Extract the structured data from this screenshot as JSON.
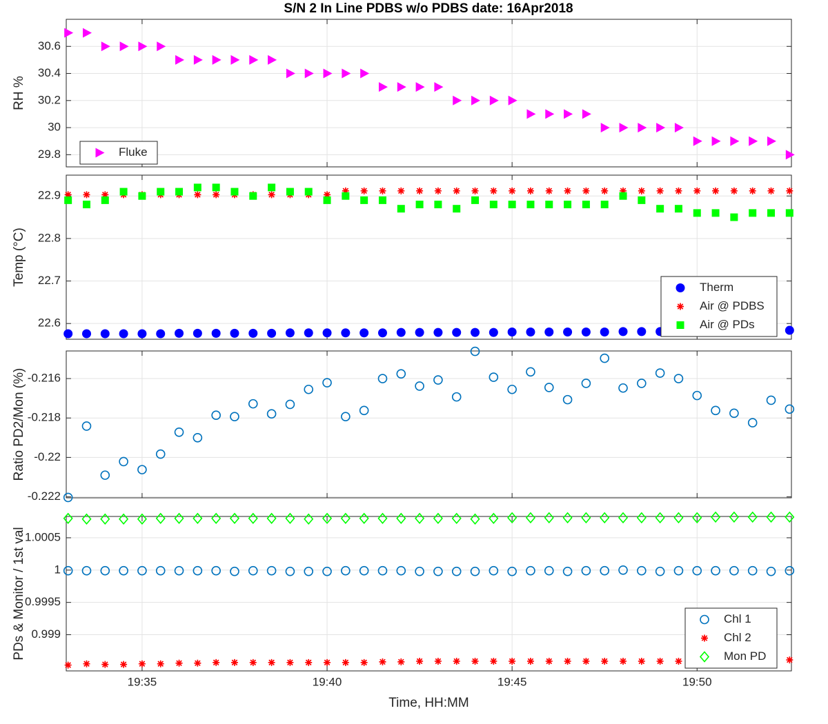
{
  "chart_data": [
    {
      "type": "scatter",
      "title": "S/N 2 In Line PDBS w/o PDBS date: 16Apr2018",
      "ylabel": "RH %",
      "x": [
        33,
        33.5,
        34,
        34.5,
        35,
        35.5,
        36,
        36.5,
        37,
        37.5,
        38,
        38.5,
        39,
        39.5,
        40,
        40.5,
        41,
        41.5,
        42,
        42.5,
        43,
        43.5,
        44,
        44.5,
        45,
        45.5,
        46,
        46.5,
        47,
        47.5,
        48,
        48.5,
        49,
        49.5,
        50,
        50.5,
        51,
        51.5,
        52,
        52.5
      ],
      "xlim": [
        32.95,
        52.55
      ],
      "ylim": [
        29.71,
        30.8
      ],
      "yticks": [
        29.8,
        30,
        30.2,
        30.4,
        30.6
      ],
      "grid": true,
      "legend": "southwest",
      "series": [
        {
          "name": "Fluke",
          "color": "#ff00ff",
          "marker": "triangle",
          "values": [
            30.7,
            30.7,
            30.6,
            30.6,
            30.6,
            30.6,
            30.5,
            30.5,
            30.5,
            30.5,
            30.5,
            30.5,
            30.4,
            30.4,
            30.4,
            30.4,
            30.4,
            30.3,
            30.3,
            30.3,
            30.3,
            30.2,
            30.2,
            30.2,
            30.2,
            30.1,
            30.1,
            30.1,
            30.1,
            30.0,
            30.0,
            30.0,
            30.0,
            30.0,
            29.9,
            29.9,
            29.9,
            29.9,
            29.9,
            29.8
          ]
        }
      ]
    },
    {
      "type": "scatter",
      "ylabel": "Temp (°C)",
      "x": [
        33,
        33.5,
        34,
        34.5,
        35,
        35.5,
        36,
        36.5,
        37,
        37.5,
        38,
        38.5,
        39,
        39.5,
        40,
        40.5,
        41,
        41.5,
        42,
        42.5,
        43,
        43.5,
        44,
        44.5,
        45,
        45.5,
        46,
        46.5,
        47,
        47.5,
        48,
        48.5,
        49,
        49.5,
        50,
        50.5,
        51,
        51.5,
        52,
        52.5
      ],
      "xlim": [
        32.95,
        52.55
      ],
      "ylim": [
        22.563,
        22.949
      ],
      "yticks": [
        22.6,
        22.7,
        22.8,
        22.9
      ],
      "grid": true,
      "legend": "southeast",
      "series": [
        {
          "name": "Therm",
          "color": "#0000ff",
          "marker": "dot",
          "values": [
            22.576,
            22.576,
            22.576,
            22.576,
            22.576,
            22.576,
            22.577,
            22.577,
            22.577,
            22.577,
            22.577,
            22.577,
            22.578,
            22.578,
            22.578,
            22.578,
            22.578,
            22.578,
            22.579,
            22.579,
            22.579,
            22.579,
            22.579,
            22.579,
            22.58,
            22.58,
            22.58,
            22.58,
            22.58,
            22.58,
            22.581,
            22.581,
            22.581,
            22.581,
            22.581,
            22.581,
            22.582,
            22.582,
            22.582,
            22.584
          ]
        },
        {
          "name": "Air @ PDBS",
          "color": "#ff0000",
          "marker": "asterisk",
          "values": [
            22.903,
            22.903,
            22.903,
            22.903,
            22.903,
            22.903,
            22.903,
            22.903,
            22.903,
            22.903,
            22.903,
            22.903,
            22.903,
            22.903,
            22.903,
            22.912,
            22.912,
            22.912,
            22.912,
            22.912,
            22.912,
            22.912,
            22.912,
            22.912,
            22.912,
            22.912,
            22.912,
            22.912,
            22.912,
            22.912,
            22.912,
            22.912,
            22.912,
            22.912,
            22.912,
            22.912,
            22.912,
            22.912,
            22.912,
            22.912
          ]
        },
        {
          "name": "Air @ PDs",
          "color": "#00ff00",
          "marker": "square",
          "values": [
            22.89,
            22.88,
            22.89,
            22.91,
            22.9,
            22.91,
            22.91,
            22.92,
            22.92,
            22.91,
            22.9,
            22.92,
            22.91,
            22.91,
            22.89,
            22.9,
            22.89,
            22.89,
            22.87,
            22.88,
            22.88,
            22.87,
            22.89,
            22.88,
            22.88,
            22.88,
            22.88,
            22.88,
            22.88,
            22.88,
            22.9,
            22.89,
            22.87,
            22.87,
            22.86,
            22.86,
            22.85,
            22.86,
            22.86,
            22.86
          ]
        }
      ]
    },
    {
      "type": "scatter",
      "ylabel": "Ratio PD2/Mon (%)",
      "x": [
        33,
        33.5,
        34,
        34.5,
        35,
        35.5,
        36,
        36.5,
        37,
        37.5,
        38,
        38.5,
        39,
        39.5,
        40,
        40.5,
        41,
        41.5,
        42,
        42.5,
        43,
        43.5,
        44,
        44.5,
        45,
        45.5,
        46,
        46.5,
        47,
        47.5,
        48,
        48.5,
        49,
        49.5,
        50,
        50.5,
        51,
        51.5,
        52,
        52.5
      ],
      "xlim": [
        32.95,
        52.55
      ],
      "ylim": [
        -0.22205,
        -0.2146
      ],
      "yticks": [
        -0.222,
        -0.22,
        -0.218,
        -0.216
      ],
      "grid": true,
      "series": [
        {
          "color": "#0072bd",
          "marker": "circle",
          "values": [
            -0.22203,
            -0.21841,
            -0.2209,
            -0.22021,
            -0.22062,
            -0.21983,
            -0.21872,
            -0.219,
            -0.21786,
            -0.21793,
            -0.21728,
            -0.21779,
            -0.21731,
            -0.21655,
            -0.21621,
            -0.21793,
            -0.21762,
            -0.216,
            -0.21576,
            -0.21638,
            -0.21607,
            -0.21693,
            -0.21462,
            -0.21593,
            -0.21655,
            -0.21566,
            -0.21645,
            -0.21707,
            -0.21624,
            -0.21497,
            -0.21648,
            -0.21624,
            -0.21572,
            -0.216,
            -0.21686,
            -0.21762,
            -0.21776,
            -0.21824,
            -0.2171,
            -0.21755
          ]
        }
      ]
    },
    {
      "type": "scatter",
      "ylabel": "PDs & Monitor / 1st val",
      "xlabel": "Time, HH:MM",
      "x": [
        33,
        33.5,
        34,
        34.5,
        35,
        35.5,
        36,
        36.5,
        37,
        37.5,
        38,
        38.5,
        39,
        39.5,
        40,
        40.5,
        41,
        41.5,
        42,
        42.5,
        43,
        43.5,
        44,
        44.5,
        45,
        45.5,
        46,
        46.5,
        47,
        47.5,
        48,
        48.5,
        49,
        49.5,
        50,
        50.5,
        51,
        51.5,
        52,
        52.5
      ],
      "xlim": [
        32.95,
        52.55
      ],
      "xticks": [
        {
          "value": 35,
          "label": "19:35"
        },
        {
          "value": 40,
          "label": "19:40"
        },
        {
          "value": 45,
          "label": "19:45"
        },
        {
          "value": 50,
          "label": "19:50"
        }
      ],
      "ylim": [
        0.99844,
        1.00083
      ],
      "yticks": [
        0.999,
        0.9995,
        1,
        1.0005
      ],
      "grid": true,
      "legend": "southeast",
      "series": [
        {
          "name": "Chl 1",
          "color": "#0072bd",
          "marker": "circle",
          "values": [
            0.99999,
            0.99999,
            0.99999,
            0.99999,
            0.99999,
            0.99999,
            0.99999,
            0.99999,
            0.99999,
            0.99998,
            0.99999,
            0.99999,
            0.99998,
            0.99998,
            0.99998,
            0.99999,
            0.99999,
            0.99999,
            0.99999,
            0.99998,
            0.99998,
            0.99998,
            0.99998,
            0.99999,
            0.99998,
            0.99999,
            0.99999,
            0.99998,
            0.99999,
            0.99999,
            1.0,
            0.99999,
            0.99998,
            0.99999,
            0.99999,
            0.99999,
            0.99999,
            0.99999,
            0.99998,
            0.99999
          ]
        },
        {
          "name": "Chl 2",
          "color": "#ff0000",
          "marker": "asterisk",
          "values": [
            0.99853,
            0.99855,
            0.99854,
            0.99854,
            0.99855,
            0.99855,
            0.99856,
            0.99856,
            0.99857,
            0.99857,
            0.99857,
            0.99857,
            0.99857,
            0.99857,
            0.99857,
            0.99857,
            0.99857,
            0.99858,
            0.99858,
            0.99859,
            0.99859,
            0.99859,
            0.99859,
            0.99859,
            0.99859,
            0.99859,
            0.99859,
            0.99859,
            0.99859,
            0.99859,
            0.99859,
            0.99859,
            0.99859,
            0.99859,
            0.99859,
            0.9986,
            0.9986,
            0.9986,
            0.9986,
            0.99861
          ]
        },
        {
          "name": "Mon PD",
          "color": "#00ff00",
          "marker": "diamond",
          "values": [
            1.0008,
            1.00079,
            1.00079,
            1.00079,
            1.00079,
            1.0008,
            1.0008,
            1.0008,
            1.0008,
            1.0008,
            1.0008,
            1.0008,
            1.0008,
            1.00079,
            1.0008,
            1.0008,
            1.0008,
            1.0008,
            1.0008,
            1.0008,
            1.0008,
            1.0008,
            1.00079,
            1.0008,
            1.00081,
            1.00081,
            1.00081,
            1.00081,
            1.00081,
            1.00081,
            1.00081,
            1.00081,
            1.00081,
            1.00081,
            1.00081,
            1.00082,
            1.00082,
            1.00082,
            1.00082,
            1.00082
          ]
        }
      ]
    }
  ]
}
